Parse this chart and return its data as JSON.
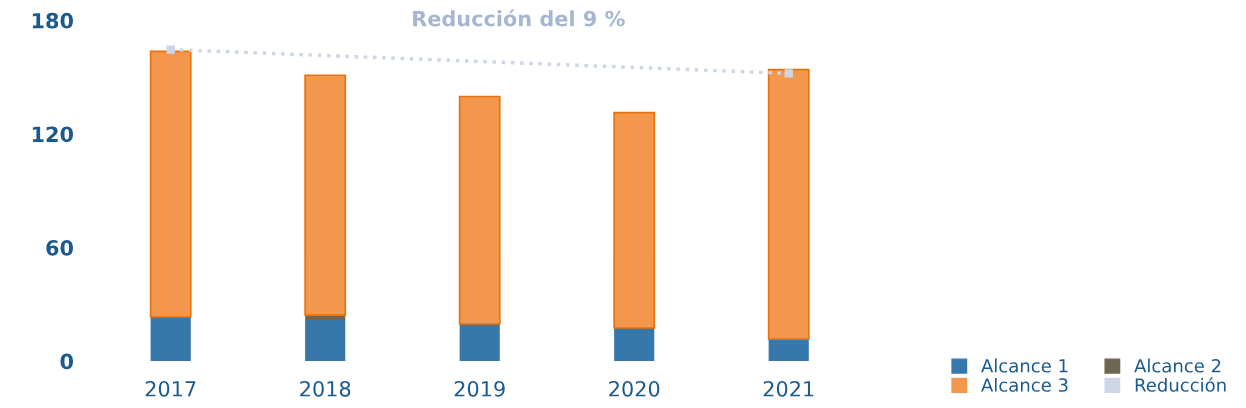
{
  "chart_data": {
    "type": "bar",
    "stacked": true,
    "title": "Reducción del 9 %",
    "categories": [
      "2017",
      "2018",
      "2019",
      "2020",
      "2021"
    ],
    "series": [
      {
        "name": "Alcance 1",
        "color": "#3778ab",
        "values": [
          23.3,
          21.7,
          19.6,
          17.5,
          11.6
        ]
      },
      {
        "name": "Alcance 2",
        "color": "#6e6650",
        "values": [
          null,
          2.6,
          null,
          null,
          null
        ]
      },
      {
        "name": "Alcance 3",
        "color": "#f2974b",
        "values": [
          140.3,
          126.7,
          120.2,
          113.8,
          142.4
        ]
      },
      {
        "name": "Reducción",
        "color": "#cdd6e6",
        "type": "line",
        "line_style": "dotted",
        "marker": "square",
        "values": [
          164.6,
          null,
          null,
          null,
          152.0
        ]
      }
    ],
    "ylim": [
      0,
      180
    ],
    "yticks": [
      0,
      60,
      120,
      180
    ],
    "grid": false,
    "legend": "bottom right"
  }
}
